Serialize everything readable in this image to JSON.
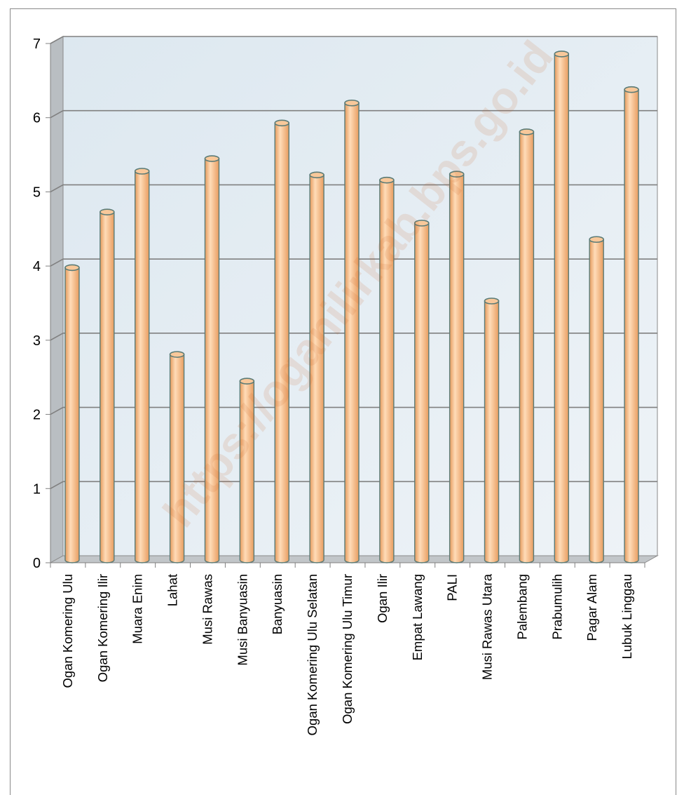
{
  "chart_data": {
    "type": "bar",
    "title": "",
    "xlabel": "",
    "ylabel": "",
    "ylim": [
      0,
      7
    ],
    "yticks": [
      0,
      1,
      2,
      3,
      4,
      5,
      6,
      7
    ],
    "grid": true,
    "legend": "none",
    "categories": [
      "Ogan Komering Ulu",
      "Ogan Komering Ilir",
      "Muara Enim",
      "Lahat",
      "Musi Rawas",
      "Musi Banyuasin",
      "Banyuasin",
      "Ogan Komering Ulu Selatan",
      "Ogan Komering Ulu Timur",
      "Ogan Ilir",
      "Empat Lawang",
      "PALI",
      "Musi Rawas Utara",
      "Palembang",
      "Prabumulih",
      "Pagar Alam",
      "Lubuk Linggau"
    ],
    "values": [
      3.95,
      4.7,
      5.25,
      2.78,
      5.42,
      2.42,
      5.9,
      5.2,
      6.17,
      5.13,
      4.55,
      5.21,
      3.5,
      5.78,
      6.83,
      4.33,
      6.35
    ],
    "colors": {
      "bar_fill": "#f6c08e",
      "bar_stroke": "#5b7b76",
      "wall": "#e4edf3",
      "grid": "#808080"
    },
    "watermark": "https://oganilirkab.bps.go.id"
  }
}
